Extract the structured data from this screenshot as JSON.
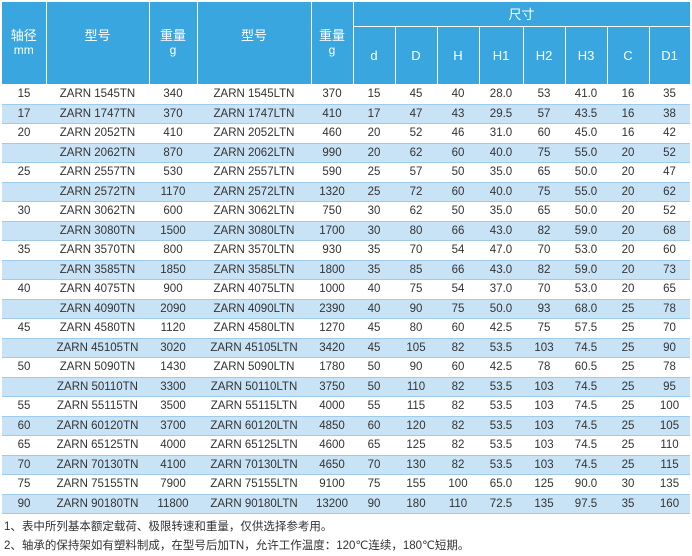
{
  "header": {
    "shaft": "轴径",
    "shaft_unit": "mm",
    "model": "型号",
    "weight": "重量",
    "weight_unit": "g",
    "dimensions_group": "尺寸",
    "dim_cols": [
      "d",
      "D",
      "H",
      "H1",
      "H2",
      "H3",
      "C",
      "D1"
    ]
  },
  "rows": [
    {
      "shaft": "15",
      "m1": "ZARN 1545TN",
      "w1": "340",
      "m2": "ZARN 1545LTN",
      "w2": "370",
      "dims": [
        "15",
        "45",
        "40",
        "28.0",
        "53",
        "41.0",
        "16",
        "35"
      ]
    },
    {
      "shaft": "17",
      "m1": "ZARN 1747TN",
      "w1": "370",
      "m2": "ZARN 1747LTN",
      "w2": "410",
      "dims": [
        "17",
        "47",
        "43",
        "29.5",
        "57",
        "43.5",
        "16",
        "38"
      ]
    },
    {
      "shaft": "20",
      "m1": "ZARN 2052TN",
      "w1": "410",
      "m2": "ZARN 2052LTN",
      "w2": "460",
      "dims": [
        "20",
        "52",
        "46",
        "31.0",
        "60",
        "45.0",
        "16",
        "42"
      ]
    },
    {
      "shaft": "",
      "m1": "ZARN 2062TN",
      "w1": "870",
      "m2": "ZARN 2062LTN",
      "w2": "990",
      "dims": [
        "20",
        "62",
        "60",
        "40.0",
        "75",
        "55.0",
        "20",
        "52"
      ]
    },
    {
      "shaft": "25",
      "m1": "ZARN 2557TN",
      "w1": "530",
      "m2": "ZARN 2557LTN",
      "w2": "590",
      "dims": [
        "25",
        "57",
        "50",
        "35.0",
        "65",
        "50.0",
        "20",
        "47"
      ]
    },
    {
      "shaft": "",
      "m1": "ZARN 2572TN",
      "w1": "1170",
      "m2": "ZARN 2572LTN",
      "w2": "1320",
      "dims": [
        "25",
        "72",
        "60",
        "40.0",
        "75",
        "55.0",
        "20",
        "62"
      ]
    },
    {
      "shaft": "30",
      "m1": "ZARN 3062TN",
      "w1": "600",
      "m2": "ZARN 3062LTN",
      "w2": "750",
      "dims": [
        "30",
        "62",
        "50",
        "35.0",
        "65",
        "50.0",
        "20",
        "52"
      ]
    },
    {
      "shaft": "",
      "m1": "ZARN 3080TN",
      "w1": "1500",
      "m2": "ZARN 3080LTN",
      "w2": "1700",
      "dims": [
        "30",
        "80",
        "66",
        "43.0",
        "82",
        "59.0",
        "20",
        "68"
      ]
    },
    {
      "shaft": "35",
      "m1": "ZARN 3570TN",
      "w1": "800",
      "m2": "ZARN 3570LTN",
      "w2": "930",
      "dims": [
        "35",
        "70",
        "54",
        "47.0",
        "70",
        "53.0",
        "20",
        "60"
      ]
    },
    {
      "shaft": "",
      "m1": "ZARN 3585TN",
      "w1": "1850",
      "m2": "ZARN 3585LTN",
      "w2": "1800",
      "dims": [
        "35",
        "85",
        "66",
        "43.0",
        "82",
        "59.0",
        "20",
        "73"
      ]
    },
    {
      "shaft": "40",
      "m1": "ZARN 4075TN",
      "w1": "900",
      "m2": "ZARN 4075LTN",
      "w2": "1000",
      "dims": [
        "40",
        "75",
        "54",
        "37.0",
        "70",
        "53.0",
        "20",
        "65"
      ]
    },
    {
      "shaft": "",
      "m1": "ZARN 4090TN",
      "w1": "2090",
      "m2": "ZARN 4090LTN",
      "w2": "2390",
      "dims": [
        "40",
        "90",
        "75",
        "50.0",
        "93",
        "68.0",
        "25",
        "78"
      ]
    },
    {
      "shaft": "45",
      "m1": "ZARN 4580TN",
      "w1": "1120",
      "m2": "ZARN 4580LTN",
      "w2": "1270",
      "dims": [
        "45",
        "80",
        "60",
        "42.5",
        "75",
        "57.5",
        "25",
        "70"
      ]
    },
    {
      "shaft": "",
      "m1": "ZARN 45105TN",
      "w1": "3020",
      "m2": "ZARN 45105LTN",
      "w2": "3420",
      "dims": [
        "45",
        "105",
        "82",
        "53.5",
        "103",
        "74.5",
        "25",
        "90"
      ]
    },
    {
      "shaft": "50",
      "m1": "ZARN 5090TN",
      "w1": "1430",
      "m2": "ZARN 5090LTN",
      "w2": "1780",
      "dims": [
        "50",
        "90",
        "60",
        "42.5",
        "78",
        "60.5",
        "25",
        "78"
      ]
    },
    {
      "shaft": "",
      "m1": "ZARN 50110TN",
      "w1": "3300",
      "m2": "ZARN 50110LTN",
      "w2": "3750",
      "dims": [
        "50",
        "110",
        "82",
        "53.5",
        "103",
        "74.5",
        "25",
        "95"
      ]
    },
    {
      "shaft": "55",
      "m1": "ZARN 55115TN",
      "w1": "3500",
      "m2": "ZARN 55115LTN",
      "w2": "4000",
      "dims": [
        "55",
        "115",
        "82",
        "53.5",
        "103",
        "74.5",
        "25",
        "100"
      ]
    },
    {
      "shaft": "60",
      "m1": "ZARN 60120TN",
      "w1": "3700",
      "m2": "ZARN 60120LTN",
      "w2": "4850",
      "dims": [
        "60",
        "120",
        "82",
        "53.5",
        "103",
        "74.5",
        "25",
        "105"
      ]
    },
    {
      "shaft": "65",
      "m1": "ZARN 65125TN",
      "w1": "4000",
      "m2": "ZARN 65125LTN",
      "w2": "4600",
      "dims": [
        "65",
        "125",
        "82",
        "53.5",
        "103",
        "74.5",
        "25",
        "110"
      ]
    },
    {
      "shaft": "70",
      "m1": "ZARN 70130TN",
      "w1": "4100",
      "m2": "ZARN 70130LTN",
      "w2": "4650",
      "dims": [
        "70",
        "130",
        "82",
        "53.5",
        "103",
        "74.5",
        "25",
        "115"
      ]
    },
    {
      "shaft": "75",
      "m1": "ZARN 75155TN",
      "w1": "7900",
      "m2": "ZARN 75155LTN",
      "w2": "9100",
      "dims": [
        "75",
        "155",
        "100",
        "65.0",
        "125",
        "90.0",
        "30",
        "135"
      ]
    },
    {
      "shaft": "90",
      "m1": "ZARN 90180TN",
      "w1": "11800",
      "m2": "ZARN 90180LTN",
      "w2": "13200",
      "dims": [
        "90",
        "180",
        "110",
        "72.5",
        "135",
        "97.5",
        "35",
        "160"
      ]
    }
  ],
  "notes": [
    "1、表中所列基本额定载荷、极限转速和重量，仅供选择参考用。",
    "2、轴承的保持架如有塑料制成，在型号后加TN，允许工作温度：120℃连续，180℃短期。"
  ],
  "colors": {
    "header_bg": "#39a6df",
    "alt_row_bg": "#c9e3f6",
    "row_line": "#9fcbec"
  }
}
